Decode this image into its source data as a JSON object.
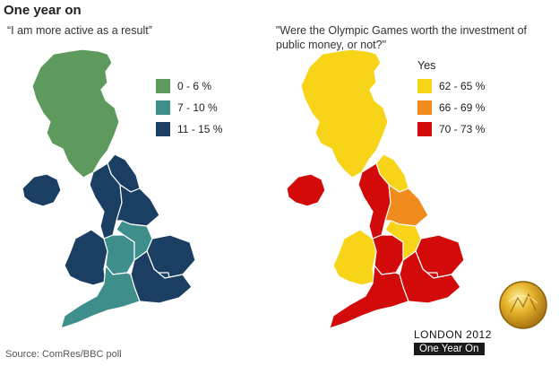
{
  "title": "One year on",
  "left_panel": {
    "question": "“I am more active as a result”",
    "legend": [
      {
        "label": "0 - 6 %",
        "color": "#5e9a5e"
      },
      {
        "label": "7 - 10  %",
        "color": "#3e8f8c"
      },
      {
        "label": "11 - 15  %",
        "color": "#1b3f63"
      }
    ]
  },
  "right_panel": {
    "question": "\"Were the Olympic Games worth the investment of public money, or not?\"",
    "legend_heading": "Yes",
    "legend": [
      {
        "label": "62 - 65  %",
        "color": "#f7d417"
      },
      {
        "label": "66 - 69  %",
        "color": "#f08c1e"
      },
      {
        "label": "70 - 73  %",
        "color": "#d20a0a"
      }
    ]
  },
  "source": "Source: ComRes/BBC poll",
  "brand": {
    "line1": "LONDON 2012",
    "line2": "One Year On"
  }
}
